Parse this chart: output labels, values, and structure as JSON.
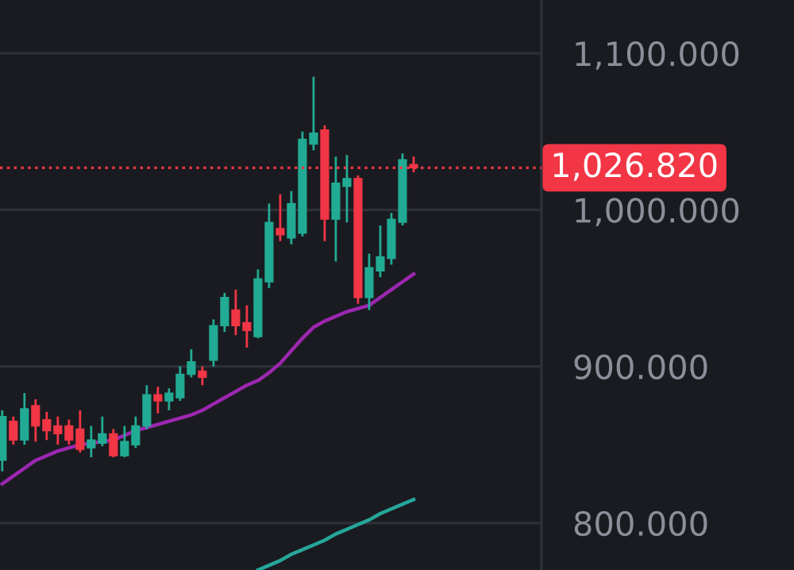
{
  "chart_data": {
    "type": "candlestick",
    "categories": [
      null,
      null,
      null,
      null,
      null,
      null,
      null,
      null,
      null,
      null,
      null,
      null,
      null,
      null,
      null,
      null,
      null,
      null,
      null,
      null,
      null,
      null,
      null,
      null,
      null,
      null,
      null,
      null,
      null,
      null,
      null,
      null,
      null,
      null,
      null,
      null,
      null,
      null
    ],
    "ohlc": [
      [
        840,
        872,
        833,
        868
      ],
      [
        865,
        868,
        850,
        853
      ],
      [
        853,
        883,
        850,
        873
      ],
      [
        875,
        879,
        852,
        862
      ],
      [
        866,
        871,
        853,
        859
      ],
      [
        862,
        868,
        850,
        857
      ],
      [
        862,
        866,
        850,
        853
      ],
      [
        860,
        872,
        845,
        847
      ],
      [
        848,
        862,
        842,
        853
      ],
      [
        851,
        868,
        849,
        857
      ],
      [
        857,
        860,
        842,
        843
      ],
      [
        843,
        862,
        842,
        852
      ],
      [
        850,
        868,
        848,
        862
      ],
      [
        862,
        888,
        860,
        882
      ],
      [
        882,
        887,
        870,
        878
      ],
      [
        878,
        886,
        872,
        883
      ],
      [
        880,
        900,
        878,
        895
      ],
      [
        895,
        911,
        893,
        903
      ],
      [
        897,
        900,
        888,
        893
      ],
      [
        904,
        930,
        900,
        926
      ],
      [
        926,
        947,
        922,
        944
      ],
      [
        936,
        949,
        920,
        926
      ],
      [
        928,
        939,
        912,
        923
      ],
      [
        919,
        962,
        918,
        956
      ],
      [
        954,
        1004,
        950,
        992
      ],
      [
        988,
        1010,
        980,
        984
      ],
      [
        982,
        1012,
        978,
        1004
      ],
      [
        985,
        1050,
        983,
        1045
      ],
      [
        1042,
        1085,
        1038,
        1049
      ],
      [
        1051,
        1054,
        980,
        994
      ],
      [
        994,
        1034,
        967,
        1017
      ],
      [
        1015,
        1035,
        992,
        1020
      ],
      [
        1020,
        1022,
        940,
        944
      ],
      [
        944,
        972,
        936,
        963
      ],
      [
        961,
        990,
        957,
        970
      ],
      [
        969,
        998,
        965,
        994
      ],
      [
        992,
        1036,
        990,
        1032
      ],
      [
        1029,
        1034,
        1024,
        1026.82
      ]
    ],
    "colors": [
      "#22ab94",
      "#f23645",
      "#22ab94",
      "#f23645",
      "#f23645",
      "#f23645",
      "#f23645",
      "#f23645",
      "#22ab94",
      "#22ab94",
      "#f23645",
      "#22ab94",
      "#22ab94",
      "#22ab94",
      "#f23645",
      "#22ab94",
      "#22ab94",
      "#22ab94",
      "#f23645",
      "#22ab94",
      "#22ab94",
      "#f23645",
      "#f23645",
      "#22ab94",
      "#22ab94",
      "#f23645",
      "#22ab94",
      "#22ab94",
      "#22ab94",
      "#f23645",
      "#22ab94",
      "#22ab94",
      "#f23645",
      "#22ab94",
      "#22ab94",
      "#22ab94",
      "#22ab94",
      "#f23645"
    ],
    "series": [
      {
        "type": "line",
        "color": "#9c27b0",
        "values": [
          825,
          830,
          835,
          840,
          843,
          846,
          848,
          850,
          851,
          852,
          853,
          856,
          859,
          861,
          863,
          865,
          867,
          869,
          872,
          876,
          880,
          884,
          888,
          891,
          896,
          902,
          910,
          918,
          925,
          929,
          932,
          935,
          937,
          939,
          944,
          949,
          954,
          959
        ]
      },
      {
        "type": "line",
        "color": "#26a69a",
        "values": [
          null,
          null,
          null,
          null,
          null,
          null,
          null,
          null,
          null,
          null,
          null,
          null,
          null,
          null,
          null,
          null,
          null,
          null,
          null,
          null,
          null,
          null,
          null,
          770,
          773,
          776,
          780,
          783,
          786,
          789,
          793,
          796,
          799,
          802,
          806,
          809,
          812,
          815
        ]
      }
    ],
    "ylim": [
      770,
      1134
    ],
    "yticks": [
      {
        "value": 800,
        "label": "800.000"
      },
      {
        "value": 900,
        "label": "900.000"
      },
      {
        "value": 1000,
        "label": "1,000.000"
      },
      {
        "value": 1100,
        "label": "1,100.000"
      }
    ],
    "ref_lines": [
      {
        "axis": "y",
        "value": 1026.82,
        "label": "1,026.820",
        "color": "#f23645",
        "line_style": "dotted"
      }
    ],
    "grid": "y",
    "tick_labels": "y"
  }
}
